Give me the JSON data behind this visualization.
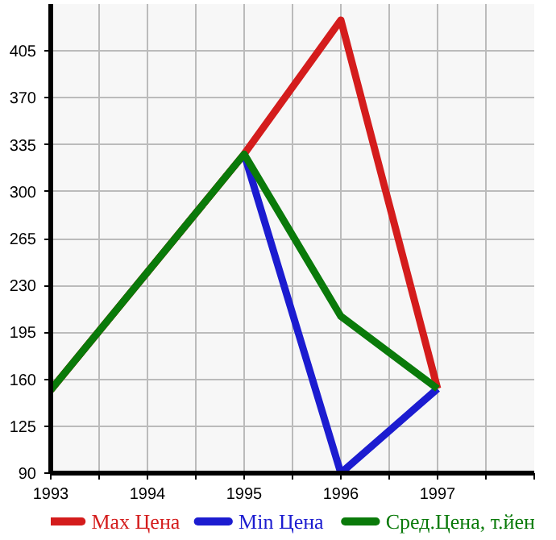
{
  "chart_data": {
    "type": "line",
    "x": [
      1993,
      1995,
      1996,
      1997
    ],
    "series": [
      {
        "name": "Max Цена",
        "color": "#d41c1c",
        "values": [
          152,
          328,
          428,
          153
        ]
      },
      {
        "name": "Min Цена",
        "color": "#1c1cd0",
        "values": [
          null,
          328,
          90,
          153
        ]
      },
      {
        "name": "Сред.Цена, т.йен",
        "color": "#0a7a0a",
        "values": [
          152,
          328,
          207,
          153
        ]
      }
    ],
    "xlim": [
      1993,
      1998
    ],
    "xticks": [
      1993,
      {
        "value": 1993.5,
        "label": null
      },
      1994,
      {
        "value": 1994.5,
        "label": null
      },
      1995,
      {
        "value": 1995.5,
        "label": null
      },
      1996,
      {
        "value": 1996.5,
        "label": null
      },
      1997,
      {
        "value": 1997.5,
        "label": null
      },
      {
        "value": 1998,
        "label": null
      }
    ],
    "ylim": [
      90,
      440
    ],
    "yticks": [
      90,
      125,
      160,
      195,
      230,
      265,
      300,
      335,
      370,
      405
    ],
    "grid": true,
    "legend": "bottom"
  }
}
